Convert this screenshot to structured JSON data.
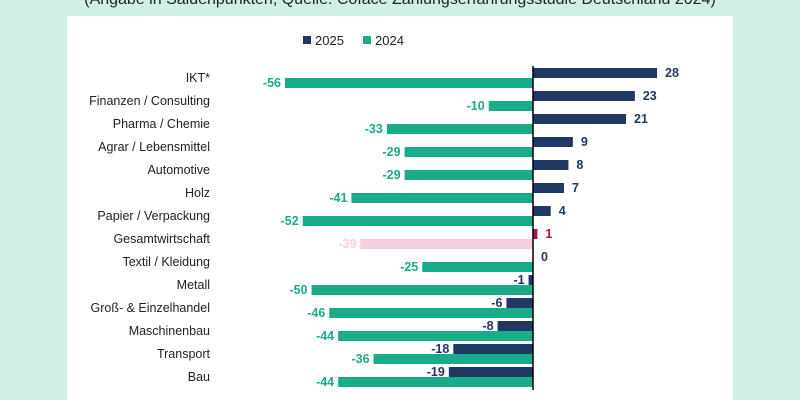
{
  "subtitle": "(Angabe in Saldenpunkten; Quelle: Coface Zahlungserfahrungsstudie Deutschland 2024)",
  "chart_data": {
    "type": "bar",
    "orientation": "horizontal",
    "categories": [
      "IKT*",
      "Finanzen / Consulting",
      "Pharma / Chemie",
      "Agrar / Lebensmittel",
      "Automotive",
      "Holz",
      "Papier / Verpackung",
      "Gesamtwirtschaft",
      "Textil / Kleidung",
      "Metall",
      "Groß- & Einzelhandel",
      "Maschinenbau",
      "Transport",
      "Bau"
    ],
    "series": [
      {
        "name": "2025",
        "color": "#1f3864",
        "values": [
          28,
          23,
          21,
          9,
          8,
          7,
          4,
          1,
          0,
          -1,
          -6,
          -8,
          -18,
          -19
        ]
      },
      {
        "name": "2024",
        "color": "#1aab8a",
        "values": [
          -56,
          -10,
          -33,
          -29,
          -29,
          -41,
          -52,
          -39,
          -25,
          -50,
          -46,
          -44,
          -36,
          -44
        ]
      }
    ],
    "highlight": {
      "category": "Gesamtwirtschaft",
      "color_2025": "#a3174f",
      "color_2024": "#f8cfe0"
    },
    "legend": "top",
    "grid": false,
    "data_labels": true
  }
}
